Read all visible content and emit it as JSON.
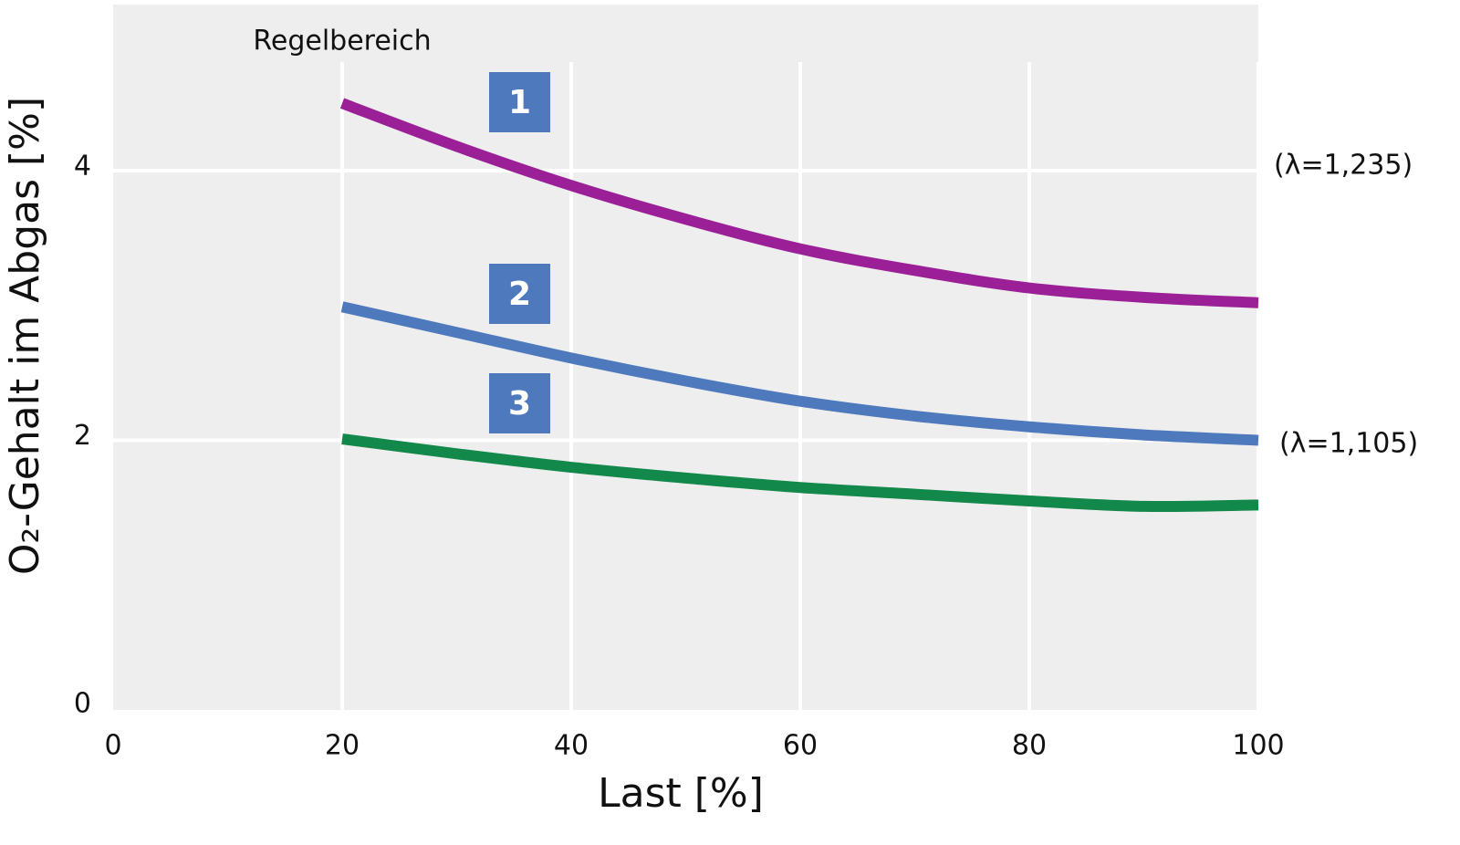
{
  "chart_data": {
    "type": "line",
    "x_label": "Last [%]",
    "y_label": "O₂-Gehalt im Abgas [%]",
    "x": [
      20,
      30,
      40,
      50,
      60,
      70,
      80,
      90,
      100
    ],
    "series": [
      {
        "name": "1",
        "color": "#9b1f96",
        "values": [
          4.5,
          4.18,
          3.89,
          3.64,
          3.42,
          3.26,
          3.13,
          3.06,
          3.02
        ]
      },
      {
        "name": "2",
        "color": "#4e79bd",
        "values": [
          2.99,
          2.8,
          2.61,
          2.44,
          2.29,
          2.18,
          2.1,
          2.04,
          2.0
        ]
      },
      {
        "name": "3",
        "color": "#12884a",
        "values": [
          2.01,
          1.9,
          1.8,
          1.72,
          1.65,
          1.6,
          1.55,
          1.51,
          1.52
        ]
      }
    ],
    "annotations": [
      "Regelbereich",
      "(λ=1,235)",
      "(λ=1,105)"
    ],
    "xlim": [
      0,
      100
    ],
    "xticks": [
      0,
      20,
      40,
      60,
      80,
      100
    ],
    "ylim": [
      0,
      5.2
    ],
    "yticks": [
      0,
      2,
      4
    ],
    "grid": true
  }
}
